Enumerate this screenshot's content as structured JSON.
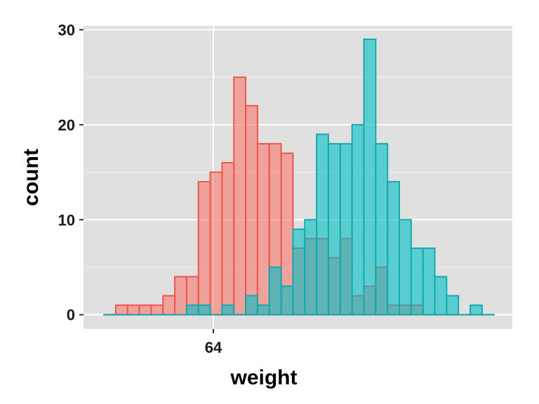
{
  "chart_data": {
    "type": "histogram",
    "xlabel": "weight",
    "ylabel": "count",
    "x_tick_labels": [
      "64"
    ],
    "y_ticks": [
      0,
      10,
      20,
      30
    ],
    "ylim": [
      -1.5,
      30.4
    ],
    "grid": true,
    "legend": "none",
    "colors": {
      "panel": "#e0e0e0",
      "grid_major": "#ffffff",
      "series_1_fill": "#f8766d",
      "series_1_stroke": "#f0564e",
      "series_2_fill": "#00bfc4",
      "series_2_stroke": "#14aab0"
    },
    "bins": 33,
    "series": [
      {
        "counts": [
          0,
          1,
          1,
          1,
          1,
          2,
          4,
          4,
          14,
          15,
          16,
          25,
          22,
          18,
          18,
          17,
          7,
          8,
          8,
          6,
          8,
          2,
          3,
          5,
          1,
          1,
          1,
          0,
          0,
          0,
          0,
          0,
          0
        ]
      },
      {
        "counts": [
          0,
          0,
          0,
          0,
          0,
          0,
          0,
          1,
          1,
          0,
          1,
          0,
          2,
          1,
          5,
          3,
          9,
          10,
          19,
          18,
          18,
          20,
          29,
          18,
          14,
          10,
          7,
          7,
          4,
          2,
          0,
          1,
          0
        ]
      }
    ]
  }
}
